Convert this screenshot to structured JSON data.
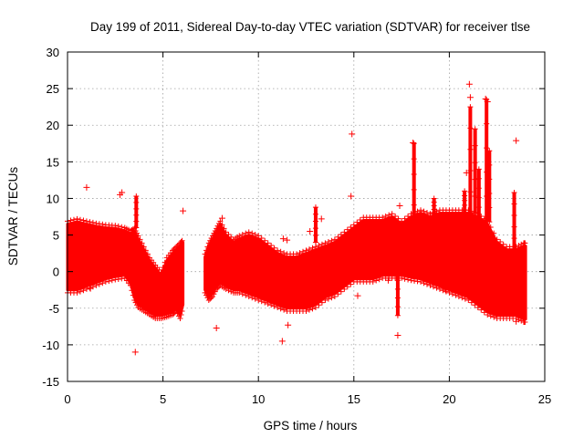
{
  "chart_data": {
    "type": "scatter",
    "title": "Day 199 of 2011, Sidereal Day-to-day VTEC variation (SDTVAR) for receiver tlse",
    "xlabel": "GPS time / hours",
    "ylabel": "SDTVAR / TECUs",
    "xlim": [
      0,
      25
    ],
    "ylim": [
      -15,
      30
    ],
    "xticks": [
      0,
      5,
      10,
      15,
      20,
      25
    ],
    "yticks": [
      -15,
      -10,
      -5,
      0,
      5,
      10,
      15,
      20,
      25,
      30
    ],
    "xtick_labels": [
      "0",
      "5",
      "10",
      "15",
      "20",
      "25"
    ],
    "ytick_labels": [
      "-15",
      "-10",
      "-5",
      "0",
      "5",
      "10",
      "15",
      "20",
      "25",
      "30"
    ],
    "grid": true,
    "marker": "+",
    "color": "#ff0000",
    "bands": [
      {
        "segment": 1,
        "x": [
          0.0,
          0.5,
          1.0,
          1.5,
          2.0,
          2.5,
          3.0,
          3.3,
          3.5,
          3.7,
          4.0,
          4.3,
          4.6,
          4.9,
          5.2,
          5.5,
          5.7,
          5.9,
          6.05
        ],
        "upper": [
          6.5,
          6.8,
          6.5,
          6.2,
          6.0,
          5.9,
          5.6,
          5.2,
          5.5,
          4.5,
          3.0,
          1.5,
          0.5,
          -0.5,
          1.5,
          2.5,
          3.0,
          3.5,
          4.0
        ],
        "lower": [
          -2.5,
          -2.5,
          -2.0,
          -1.5,
          -1.0,
          -0.7,
          -0.5,
          -1.5,
          -3.5,
          -4.5,
          -5.0,
          -5.5,
          -6.0,
          -6.0,
          -5.8,
          -5.5,
          -5.0,
          -6.0,
          -4.5
        ]
      },
      {
        "segment": 2,
        "x": [
          7.2,
          7.4,
          7.6,
          7.8,
          8.0,
          8.3,
          8.7,
          9.0,
          9.5,
          10.0,
          10.5,
          11.0,
          11.5,
          12.0,
          12.5,
          13.0,
          13.5,
          14.0,
          14.5,
          15.0,
          15.5,
          16.0,
          16.5,
          17.0,
          17.5,
          18.0,
          18.5,
          19.0,
          19.5,
          20.0,
          20.5,
          21.0,
          21.5,
          22.0,
          22.5,
          23.0,
          23.5,
          23.9,
          24.0
        ],
        "upper": [
          2.0,
          3.5,
          4.5,
          5.5,
          6.5,
          5.0,
          4.0,
          4.5,
          5.0,
          4.5,
          3.5,
          2.5,
          2.0,
          2.0,
          2.5,
          3.0,
          3.5,
          4.0,
          5.0,
          6.0,
          7.0,
          7.0,
          7.0,
          7.5,
          6.5,
          7.5,
          8.0,
          7.5,
          8.0,
          8.0,
          8.0,
          8.0,
          7.5,
          6.5,
          4.0,
          3.0,
          3.0,
          3.5,
          3.5
        ],
        "lower": [
          -2.5,
          -3.5,
          -3.0,
          -2.0,
          -1.5,
          -2.0,
          -2.5,
          -2.5,
          -3.0,
          -3.5,
          -4.0,
          -4.5,
          -5.0,
          -5.0,
          -5.0,
          -4.5,
          -3.5,
          -3.0,
          -2.0,
          -1.0,
          -1.0,
          -1.0,
          -0.5,
          -0.5,
          -0.5,
          -0.8,
          -1.0,
          -1.5,
          -2.0,
          -2.5,
          -3.0,
          -3.5,
          -4.5,
          -5.5,
          -6.0,
          -6.0,
          -6.0,
          -6.5,
          -6.5
        ]
      }
    ],
    "spikes": [
      {
        "x": 3.6,
        "base": 6.0,
        "top": 10.3
      },
      {
        "x": 18.15,
        "base": 7.0,
        "top": 17.5
      },
      {
        "x": 19.2,
        "base": 7.5,
        "top": 10.0
      },
      {
        "x": 20.8,
        "base": 7.8,
        "top": 11.0
      },
      {
        "x": 21.1,
        "base": 8.0,
        "top": 22.5
      },
      {
        "x": 21.35,
        "base": 8.0,
        "top": 19.5
      },
      {
        "x": 21.55,
        "base": 7.5,
        "top": 14.0
      },
      {
        "x": 21.95,
        "base": 7.0,
        "top": 23.5
      },
      {
        "x": 22.1,
        "base": 6.8,
        "top": 16.5
      },
      {
        "x": 23.4,
        "base": 3.0,
        "top": 10.8
      },
      {
        "x": 13.0,
        "base": 4.0,
        "top": 8.8
      },
      {
        "x": 17.3,
        "base": 0.0,
        "top": -6.0
      }
    ],
    "outliers": [
      {
        "x": 1.0,
        "y": 11.5
      },
      {
        "x": 2.75,
        "y": 10.5
      },
      {
        "x": 2.85,
        "y": 10.8
      },
      {
        "x": 3.55,
        "y": -11.0
      },
      {
        "x": 6.05,
        "y": 8.3
      },
      {
        "x": 7.8,
        "y": -7.7
      },
      {
        "x": 11.3,
        "y": 4.5
      },
      {
        "x": 11.5,
        "y": 4.3
      },
      {
        "x": 11.25,
        "y": -9.5
      },
      {
        "x": 11.55,
        "y": -7.3
      },
      {
        "x": 12.7,
        "y": 5.5
      },
      {
        "x": 13.3,
        "y": 7.2
      },
      {
        "x": 14.9,
        "y": 18.8
      },
      {
        "x": 14.85,
        "y": 10.3
      },
      {
        "x": 15.2,
        "y": -3.3
      },
      {
        "x": 17.3,
        "y": -8.7
      },
      {
        "x": 17.4,
        "y": 9.0
      },
      {
        "x": 19.8,
        "y": -2.5
      },
      {
        "x": 20.9,
        "y": 13.5
      },
      {
        "x": 21.05,
        "y": 25.6
      },
      {
        "x": 21.1,
        "y": 23.8
      },
      {
        "x": 21.9,
        "y": 23.6
      },
      {
        "x": 22.0,
        "y": 23.2
      },
      {
        "x": 22.4,
        "y": -2.0
      },
      {
        "x": 23.5,
        "y": 17.9
      },
      {
        "x": 23.5,
        "y": -6.8
      },
      {
        "x": 18.1,
        "y": 17.6
      },
      {
        "x": 1.2,
        "y": -2.3
      },
      {
        "x": 8.1,
        "y": 7.3
      },
      {
        "x": 16.8,
        "y": -1.2
      }
    ]
  }
}
